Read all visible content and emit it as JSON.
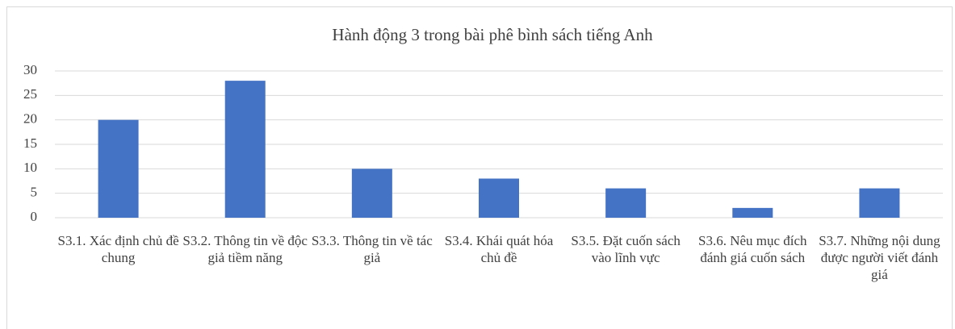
{
  "chart_data": {
    "type": "bar",
    "title": "Hành động 3 trong bài phê bình sách tiếng Anh",
    "categories": [
      "S3.1. Xác định chủ đề chung",
      "S3.2. Thông tin về độc giả tiềm năng",
      "S3.3. Thông tin về tác giả",
      "S3.4. Khái quát hóa chủ đề",
      "S3.5. Đặt cuốn sách vào lĩnh vực",
      "S3.6. Nêu mục đích đánh giá cuốn sách",
      "S3.7. Những nội dung được người viết đánh giá"
    ],
    "values": [
      20,
      28,
      10,
      8,
      6,
      2,
      6
    ],
    "color": "#4472c4",
    "ylim": [
      0,
      30
    ],
    "yticks": [
      0,
      5,
      10,
      15,
      20,
      25,
      30
    ],
    "grid": true
  }
}
